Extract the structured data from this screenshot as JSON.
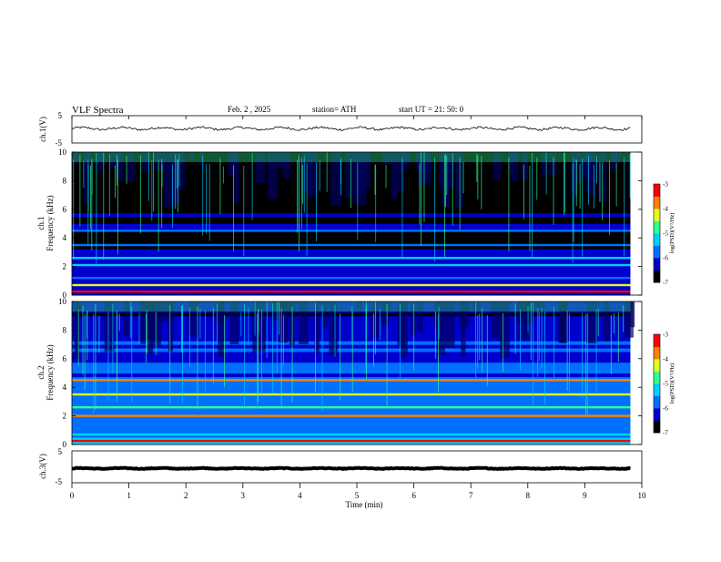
{
  "header": {
    "title": "VLF  Spectra",
    "date": "Feb. 2  , 2025",
    "station": "station= ATH",
    "start": "start  UT  =   21: 50: 0"
  },
  "colors": {
    "frame": "#000000",
    "colormap": [
      "#000000",
      "#0000cc",
      "#0070ff",
      "#00d0ff",
      "#30ff90",
      "#e0ff20",
      "#ff8000",
      "#ff0000",
      "#ffffff"
    ]
  },
  "chart_data": [
    {
      "type": "line",
      "panel": "ch1-waveform",
      "ylabel": "ch.1(V)",
      "yticks": [
        "5",
        "-5"
      ],
      "ylim": [
        -5,
        5
      ],
      "x_range_min": [
        0,
        9.8
      ],
      "baseline_v": 0.3,
      "amplitude_v": 0.8
    },
    {
      "type": "heatmap",
      "panel": "ch1-spectrogram",
      "ylabel": "ch.1\nFrequency (kHz)",
      "yticks": [
        "0",
        "2",
        "4",
        "6",
        "8",
        "10"
      ],
      "ylim_khz": [
        0,
        10
      ],
      "x_range_min": [
        0,
        9.8
      ],
      "colorbar": {
        "label": "log(PSD)(V²/Hz)",
        "ticks": [
          "-3",
          "-4",
          "-5",
          "-6",
          "-7"
        ],
        "range": [
          -7,
          -3
        ]
      },
      "bands_khz": [
        {
          "f": 0.25,
          "level": -3.3
        },
        {
          "f": 0.7,
          "level": -4.3
        },
        {
          "f": 1.2,
          "level": -5.8
        },
        {
          "f": 2.1,
          "level": -5.2
        },
        {
          "f": 2.6,
          "level": -5.5
        },
        {
          "f": 3.5,
          "level": -5.8
        },
        {
          "f": 4.5,
          "level": -6.0
        }
      ]
    },
    {
      "type": "heatmap",
      "panel": "ch2-spectrogram",
      "ylabel": "ch.2\nFrequency (kHz)",
      "yticks": [
        "0",
        "2",
        "4",
        "6",
        "8",
        "10"
      ],
      "ylim_khz": [
        0,
        10
      ],
      "x_range_min": [
        0,
        9.8
      ],
      "colorbar": {
        "label": "log(PSD)(V²/Hz)",
        "ticks": [
          "-3",
          "-4",
          "-5",
          "-6",
          "-7"
        ],
        "range": [
          -7,
          -3
        ]
      },
      "bands_khz": [
        {
          "f": 0.25,
          "level": -3.3
        },
        {
          "f": 0.7,
          "level": -5.3
        },
        {
          "f": 2.0,
          "level": -3.9
        },
        {
          "f": 2.6,
          "level": -4.6
        },
        {
          "f": 3.5,
          "level": -4.4
        },
        {
          "f": 4.5,
          "level": -4.0
        }
      ]
    },
    {
      "type": "line",
      "panel": "ch3-waveform",
      "ylabel": "ch.3(V)",
      "yticks": [
        "5",
        "-5"
      ],
      "ylim": [
        -5,
        5
      ],
      "x_range_min": [
        0,
        9.8
      ],
      "baseline_v": -0.5,
      "amplitude_v": 0.2
    }
  ],
  "xaxis": {
    "label": "Time  (min)",
    "ticks": [
      "0",
      "1",
      "2",
      "3",
      "4",
      "5",
      "6",
      "7",
      "8",
      "9",
      "10"
    ],
    "range_min": [
      0,
      10
    ]
  }
}
